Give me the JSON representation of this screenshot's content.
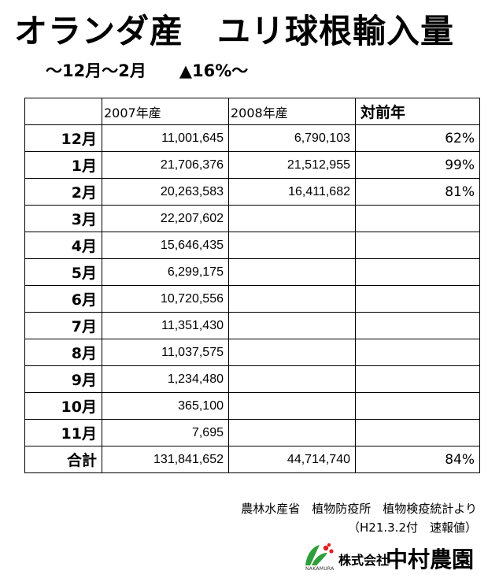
{
  "title": "オランダ産　ユリ球根輸入量",
  "subtitle": "～12月～2月　　▲16%～",
  "table": {
    "headers": [
      "",
      "2007年産",
      "2008年産",
      "対前年"
    ],
    "rows": [
      {
        "month": "12月",
        "y2007": "11,001,645",
        "y2008": "6,790,103",
        "ratio": "62%"
      },
      {
        "month": "1月",
        "y2007": "21,706,376",
        "y2008": "21,512,955",
        "ratio": "99%"
      },
      {
        "month": "2月",
        "y2007": "20,263,583",
        "y2008": "16,411,682",
        "ratio": "81%"
      },
      {
        "month": "3月",
        "y2007": "22,207,602",
        "y2008": "",
        "ratio": ""
      },
      {
        "month": "4月",
        "y2007": "15,646,435",
        "y2008": "",
        "ratio": ""
      },
      {
        "month": "5月",
        "y2007": "6,299,175",
        "y2008": "",
        "ratio": ""
      },
      {
        "month": "6月",
        "y2007": "10,720,556",
        "y2008": "",
        "ratio": ""
      },
      {
        "month": "7月",
        "y2007": "11,351,430",
        "y2008": "",
        "ratio": ""
      },
      {
        "month": "8月",
        "y2007": "11,037,575",
        "y2008": "",
        "ratio": ""
      },
      {
        "month": "9月",
        "y2007": "1,234,480",
        "y2008": "",
        "ratio": ""
      },
      {
        "month": "10月",
        "y2007": "365,100",
        "y2008": "",
        "ratio": ""
      },
      {
        "month": "11月",
        "y2007": "7,695",
        "y2008": "",
        "ratio": ""
      },
      {
        "month": "合計",
        "y2007": "131,841,652",
        "y2008": "44,714,740",
        "ratio": "84%"
      }
    ]
  },
  "source": {
    "line1": "農林水産省　植物防疫所　植物検疫統計より",
    "line2": "（H21.3.2付　速報値）"
  },
  "logo": {
    "kabushiki": "株式会社",
    "name": "中村農園",
    "roman": "NAKAMURA",
    "mark_colors": [
      "#2e9e3a",
      "#e02020"
    ]
  }
}
